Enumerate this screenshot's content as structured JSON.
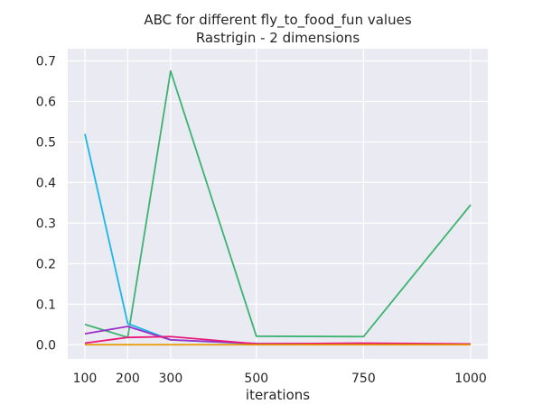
{
  "chart_data": {
    "type": "line",
    "title_line1": "ABC for different fly_to_food_fun values",
    "title_line2": "Rastrigin - 2 dimensions",
    "xlabel": "iterations",
    "ylabel": "",
    "x": [
      100,
      200,
      300,
      500,
      750,
      1000
    ],
    "xlim": [
      60,
      1040
    ],
    "ylim": [
      -0.035,
      0.73
    ],
    "xticks": [
      100,
      200,
      300,
      500,
      750,
      1000
    ],
    "yticks": [
      0.0,
      0.1,
      0.2,
      0.3,
      0.4,
      0.5,
      0.6,
      0.7
    ],
    "ytick_labels": [
      "0.0",
      "0.1",
      "0.2",
      "0.3",
      "0.4",
      "0.5",
      "0.6",
      "0.7"
    ],
    "grid": true,
    "legend": false,
    "background": "#eaeaf2",
    "series": [
      {
        "color": "#3cb371",
        "values": [
          0.05,
          0.018,
          0.675,
          0.021,
          0.02,
          0.345
        ]
      },
      {
        "color": "#1ab7ea",
        "values": [
          0.52,
          0.052,
          0.012,
          0.002,
          0.002,
          0.002
        ]
      },
      {
        "color": "#9b30c8",
        "values": [
          0.027,
          0.045,
          0.012,
          0.003,
          0.002,
          0.002
        ]
      },
      {
        "color": "#e8177a",
        "values": [
          0.004,
          0.018,
          0.02,
          0.002,
          0.004,
          0.002
        ]
      },
      {
        "color": "#e69a00",
        "values": [
          0.0,
          0.0,
          0.0,
          0.0,
          0.0,
          0.0
        ]
      }
    ]
  }
}
